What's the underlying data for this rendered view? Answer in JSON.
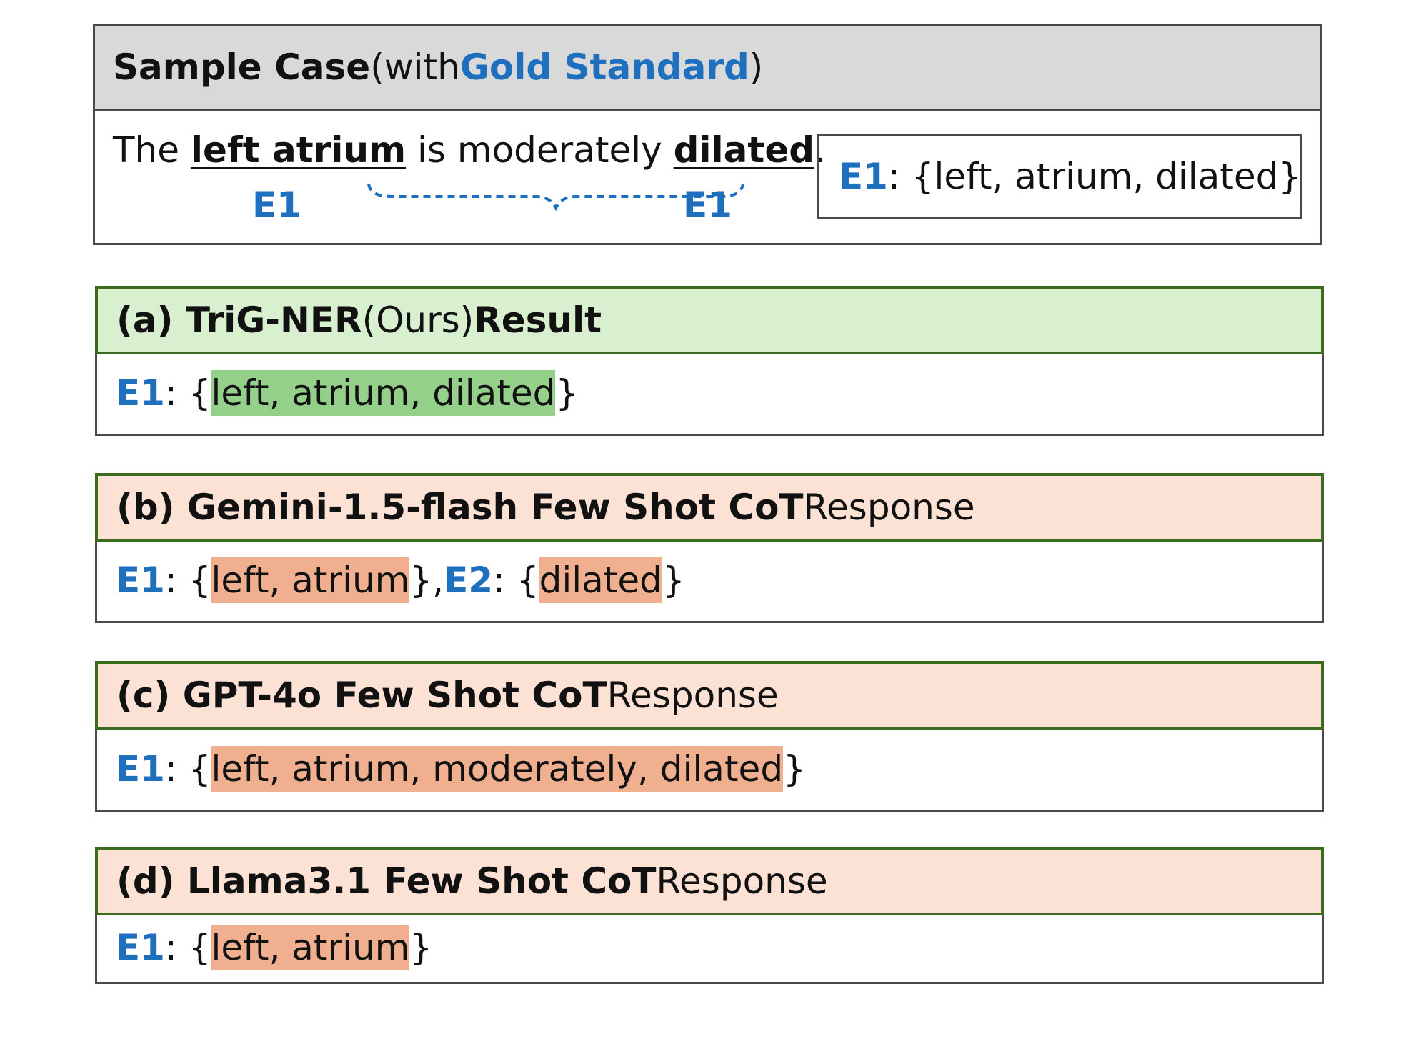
{
  "sample": {
    "header": {
      "bold_part": "Sample Case",
      "open": " (with ",
      "gold": "Gold Standard",
      "close": ")"
    },
    "sentence": {
      "the": "The ",
      "entity1": "left atrium",
      "middle": " is moderately ",
      "entity2": "dilated",
      "end": "."
    },
    "span_label_left": "E1",
    "span_label_right": "E1",
    "gold_box": {
      "label": "E1",
      "value": ": {left, atrium, dilated}"
    }
  },
  "panels": [
    {
      "header_bold": "(a) TriG-NER",
      "header_mid": " (Ours) ",
      "header_tail_bold": "Result",
      "label": "E1",
      "colon": ": {",
      "highlight": "left, atrium, dilated",
      "close": "}"
    },
    {
      "header_bold": "(b) Gemini-1.5-flash  Few Shot CoT",
      "header_tail": " Response",
      "label": "E1",
      "colon": ": {",
      "highlight": "left, atrium",
      "close": "}, ",
      "label2": "E2",
      "colon2": ": {",
      "highlight2": "dilated",
      "close2": "}"
    },
    {
      "header_bold": "(c) GPT-4o Few Shot CoT",
      "header_tail": " Response",
      "label": "E1",
      "colon": ": {",
      "highlight": "left, atrium, moderately, dilated",
      "close": "}"
    },
    {
      "header_bold": "(d) Llama3.1 Few Shot CoT",
      "header_tail": " Response",
      "label": "E1",
      "colon": ": {",
      "highlight": "left, atrium",
      "close": "}"
    }
  ],
  "colors": {
    "entity_blue": "#1f6fbf",
    "correct_highlight": "#94d08a",
    "wrong_highlight": "#f0b08f",
    "header_green": "#d8f0cf",
    "header_peach": "#fbe2d5",
    "header_border": "#3a6b1f",
    "sample_header_gray": "#d9d9d9"
  }
}
